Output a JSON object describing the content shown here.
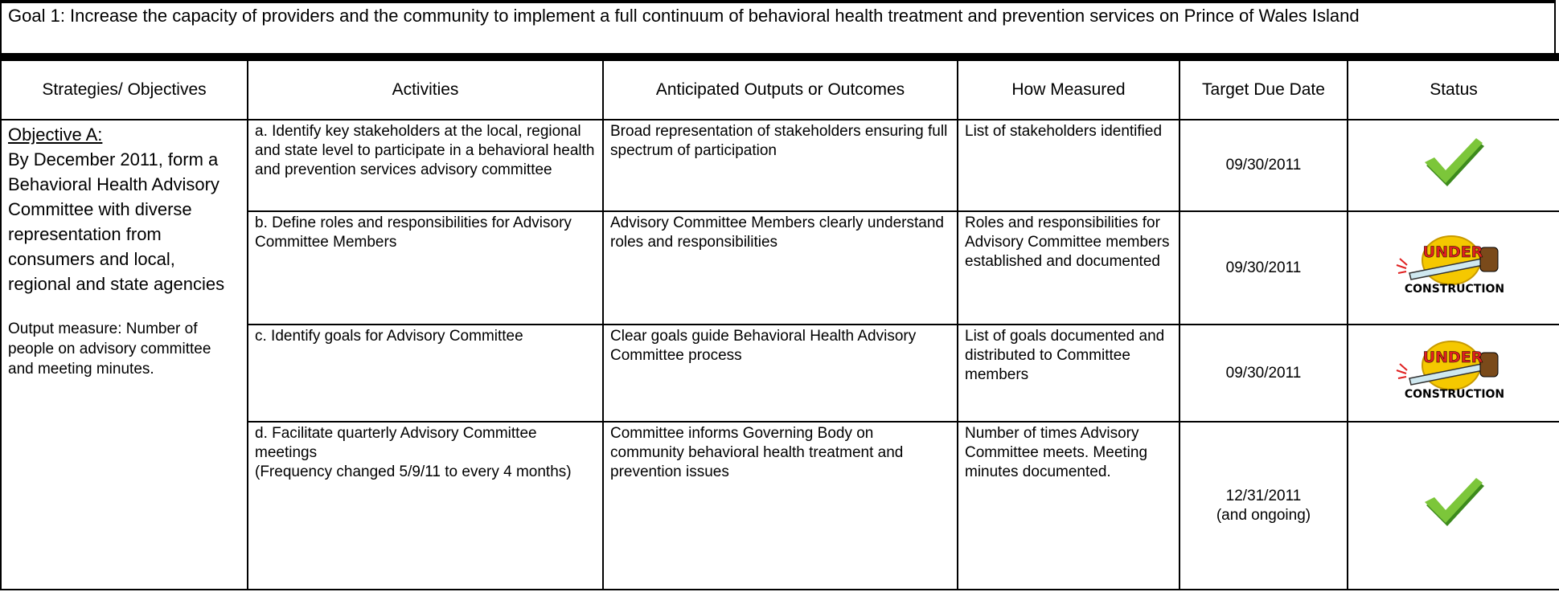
{
  "goal": "Goal 1: Increase the capacity of providers and the community to implement a full continuum of behavioral health treatment and prevention services on Prince of Wales Island",
  "table": {
    "headers": [
      "Strategies/ Objectives",
      "Activities",
      "Anticipated Outputs or Outcomes",
      "How Measured",
      "Target Due Date",
      "Status"
    ],
    "objective": {
      "heading": "Objective A:",
      "text": "By December 2011, form a Behavioral Health Advisory Committee with diverse representation from consumers and local, regional and state agencies",
      "measure": "Output measure: Number of people on advisory committee and meeting minutes."
    },
    "rows": [
      {
        "activity": "a. Identify key stakeholders at the local, regional and state level to participate in a behavioral health and prevention services advisory committee",
        "outputs": "Broad representation of stakeholders ensuring full spectrum of participation",
        "measured": "List of stakeholders identified",
        "due": "09/30/2011"
      },
      {
        "activity": "b. Define roles and responsibilities for Advisory Committee Members",
        "outputs": "Advisory Committee Members clearly understand roles and responsibilities",
        "measured": "Roles and responsibilities for Advisory Committee members established and documented",
        "due": "09/30/2011",
        "status_badge": [
          "UNDER",
          "CONSTRUCTION"
        ]
      },
      {
        "activity": "c.  Identify goals for Advisory Committee",
        "outputs": "Clear goals guide Behavioral Health Advisory Committee process",
        "measured": "List of goals documented and distributed to Committee members",
        "due": "09/30/2011",
        "status_badge": [
          "UNDER",
          "CONSTRUCTION"
        ]
      },
      {
        "activity": "d.  Facilitate quarterly Advisory Committee meetings",
        "activity_note": "(Frequency changed 5/9/11 to every 4 months)",
        "outputs": "Committee informs Governing Body on community behavioral health treatment and prevention  issues",
        "measured": "Number of times Advisory Committee meets.  Meeting minutes documented.",
        "due": "12/31/2011",
        "due_note": "(and ongoing)"
      }
    ]
  }
}
